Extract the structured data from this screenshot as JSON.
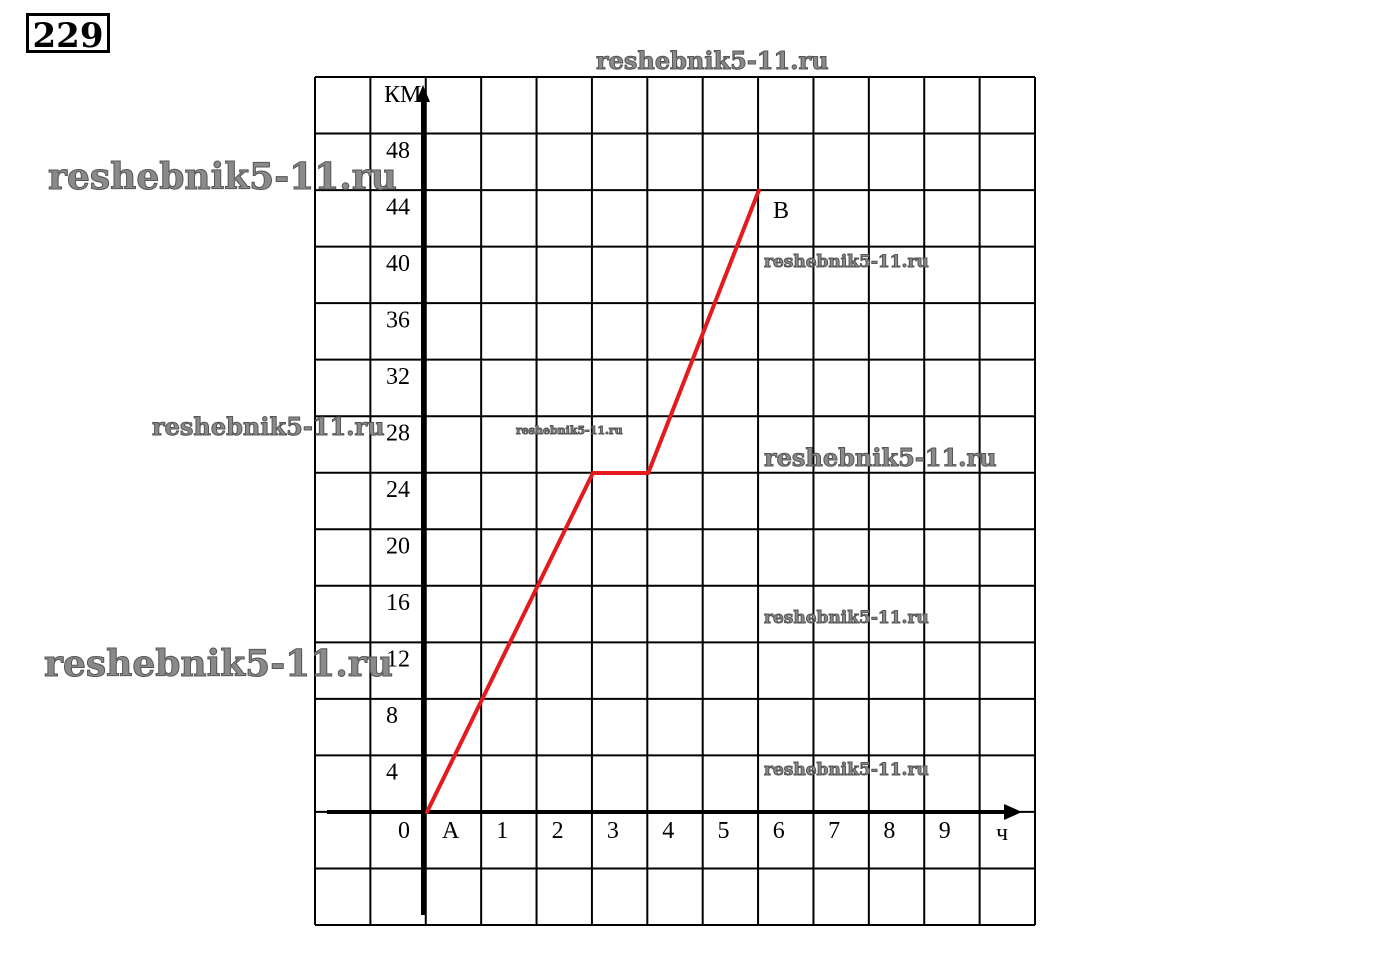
{
  "problem_number": "229",
  "watermark": "reshebnik5-11.ru",
  "chart_data": {
    "type": "line",
    "title": "",
    "xlabel": "ч",
    "ylabel": "КМ",
    "x_tick_labels": [
      "0",
      "A",
      "1",
      "2",
      "3",
      "4",
      "5",
      "6",
      "7",
      "8",
      "9"
    ],
    "y_tick_labels": [
      "4",
      "8",
      "12",
      "16",
      "20",
      "24",
      "28",
      "32",
      "36",
      "40",
      "44",
      "48"
    ],
    "xlim": [
      -2,
      11
    ],
    "ylim": [
      -8,
      52
    ],
    "grid": true,
    "line_color": "#e41a1c",
    "points": [
      {
        "x": 0,
        "y": 0
      },
      {
        "x": 3,
        "y": 24
      },
      {
        "x": 4,
        "y": 24
      },
      {
        "x": 6,
        "y": 44
      }
    ],
    "point_labels": {
      "start": "A",
      "end": "B"
    }
  }
}
